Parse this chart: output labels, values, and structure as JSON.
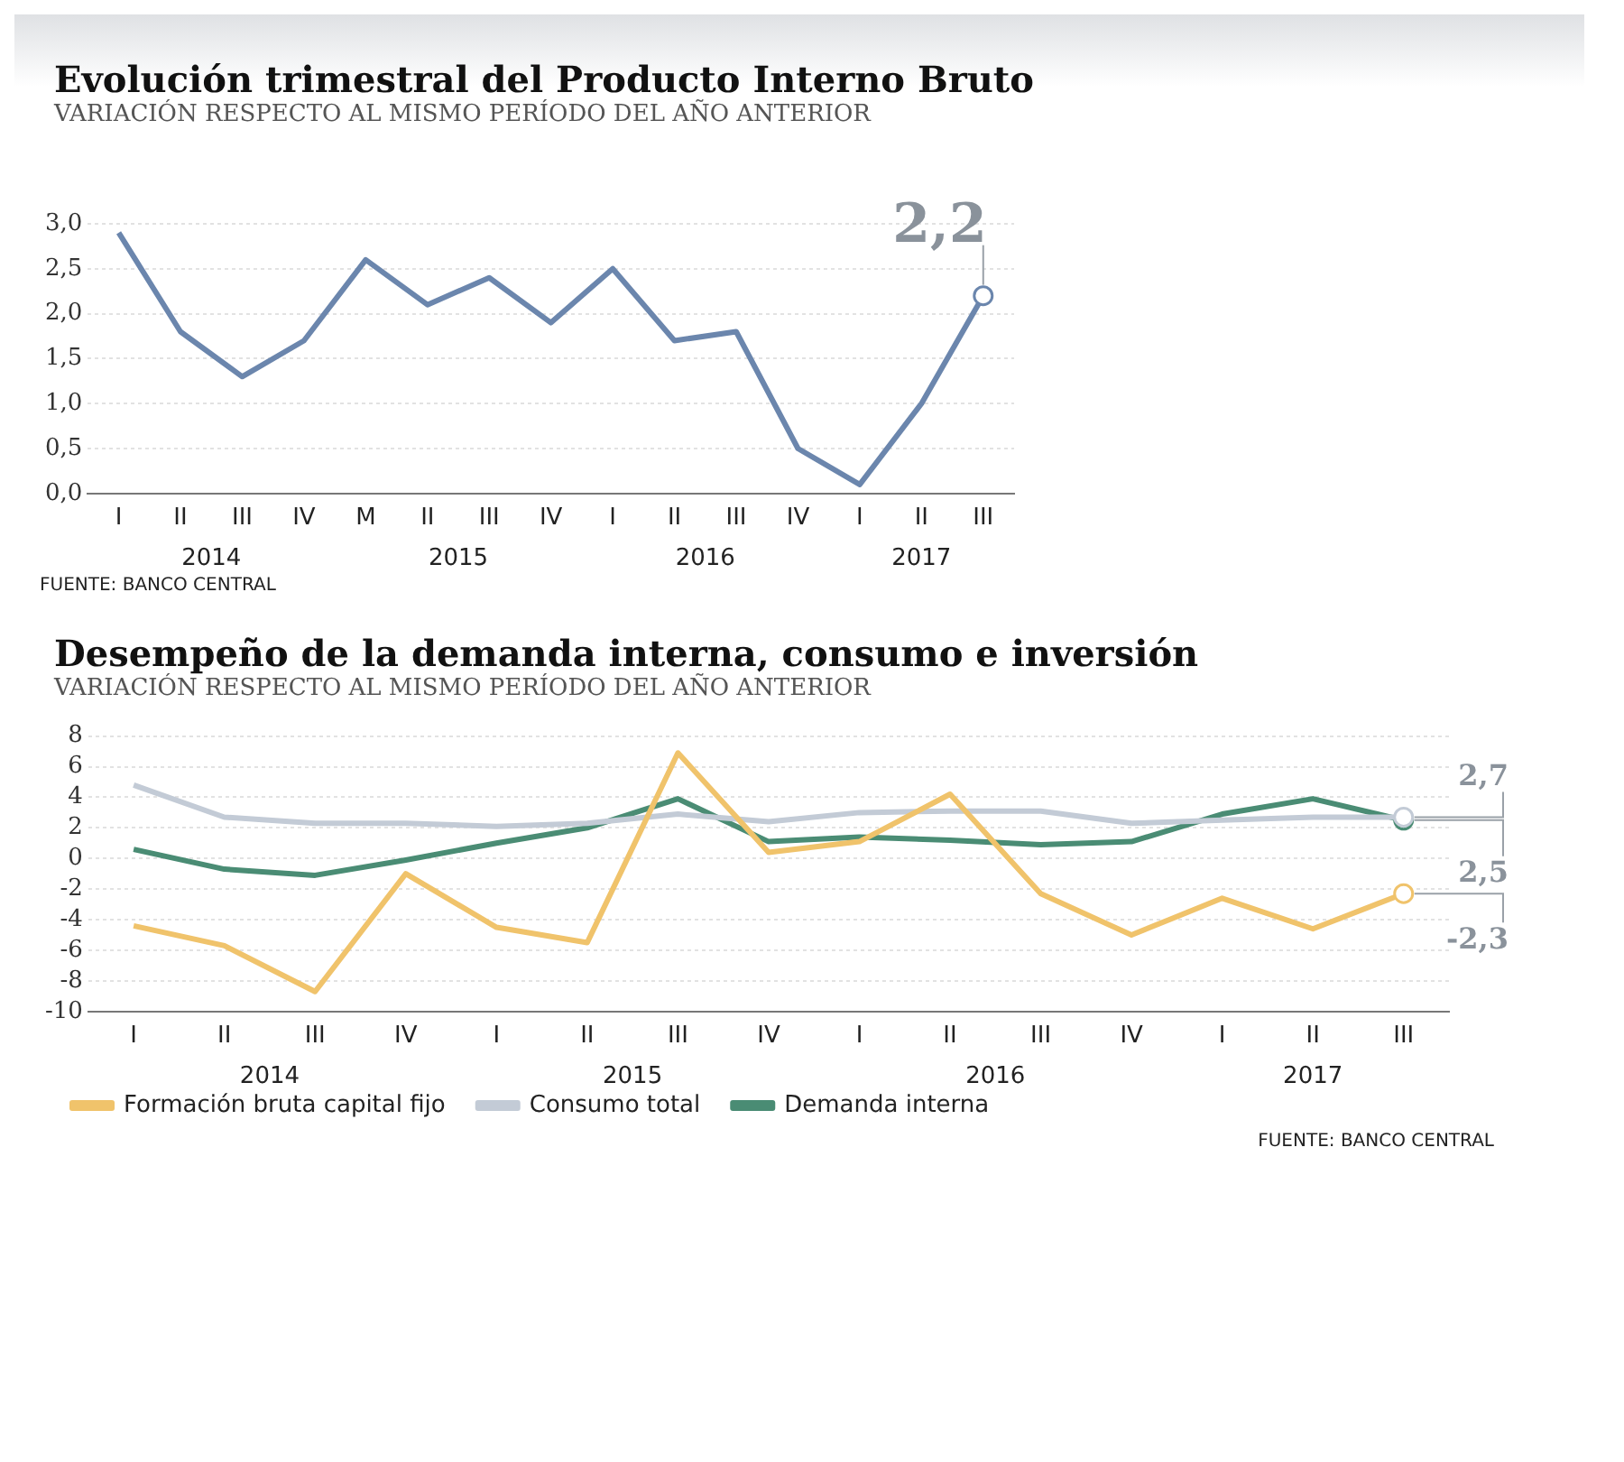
{
  "chart_data": [
    {
      "type": "line",
      "title": "Evolución trimestral del Producto Interno Bruto",
      "subtitle": "VARIACIÓN RESPECTO AL MISMO PERÍODO DEL AÑO ANTERIOR",
      "categories": [
        "I",
        "II",
        "III",
        "IV",
        "M",
        "II",
        "III",
        "IV",
        "I",
        "II",
        "III",
        "IV",
        "I",
        "II",
        "III"
      ],
      "series": [
        {
          "color": "#6b86ad",
          "values": [
            2.9,
            1.8,
            1.3,
            1.7,
            2.6,
            2.1,
            2.4,
            1.9,
            2.5,
            1.7,
            1.8,
            0.5,
            0.1,
            1.0,
            2.2
          ],
          "value_labels": [
            null,
            null,
            null,
            null,
            null,
            null,
            null,
            null,
            null,
            null,
            null,
            null,
            null,
            null,
            "2,2"
          ]
        }
      ],
      "ylim": [
        0,
        3
      ],
      "yticks": [
        {
          "value": 0,
          "label": "0,0"
        },
        {
          "value": 0.5,
          "label": "0,5"
        },
        {
          "value": 1,
          "label": "1,0"
        },
        {
          "value": 1.5,
          "label": "1,5"
        },
        {
          "value": 2,
          "label": "2,0"
        },
        {
          "value": 2.5,
          "label": "2,5"
        },
        {
          "value": 3,
          "label": "3,0"
        }
      ],
      "grid": "y",
      "legend": false,
      "annotations": [
        "2014",
        "2015",
        "2016",
        "2017",
        "FUENTE: BANCO CENTRAL"
      ]
    },
    {
      "type": "line",
      "title": "Desempeño de la demanda interna, consumo e inversión",
      "subtitle": "VARIACIÓN RESPECTO AL MISMO PERÍODO DEL AÑO ANTERIOR",
      "categories": [
        "I",
        "II",
        "III",
        "IV",
        "I",
        "II",
        "III",
        "IV",
        "I",
        "II",
        "III",
        "IV",
        "I",
        "II",
        "III"
      ],
      "series": [
        {
          "name": "Formación bruta capital fijo",
          "color": "#f0c36b",
          "values": [
            -4.4,
            -5.7,
            -8.7,
            -1.0,
            -4.5,
            -5.5,
            6.9,
            0.4,
            1.1,
            4.2,
            -2.3,
            -5.0,
            -2.6,
            -4.6,
            -2.3
          ],
          "value_labels": [
            null,
            null,
            null,
            null,
            null,
            null,
            null,
            null,
            null,
            null,
            null,
            null,
            null,
            null,
            "-2,3"
          ]
        },
        {
          "name": "Consumo total",
          "color": "#c3cbd6",
          "values": [
            4.8,
            2.7,
            2.3,
            2.3,
            2.1,
            2.3,
            2.9,
            2.4,
            3.0,
            3.1,
            3.1,
            2.3,
            2.5,
            2.7,
            2.7
          ],
          "value_labels": [
            null,
            null,
            null,
            null,
            null,
            null,
            null,
            null,
            null,
            null,
            null,
            null,
            null,
            null,
            "2,7"
          ]
        },
        {
          "name": "Demanda interna",
          "color": "#4a8c74",
          "values": [
            0.6,
            -0.7,
            -1.1,
            -0.1,
            1.0,
            2.0,
            3.9,
            1.1,
            1.4,
            1.2,
            0.9,
            1.1,
            2.9,
            3.9,
            2.5
          ],
          "value_labels": [
            null,
            null,
            null,
            null,
            null,
            null,
            null,
            null,
            null,
            null,
            null,
            null,
            null,
            null,
            "2,5"
          ]
        }
      ],
      "ylim": [
        -10,
        8
      ],
      "yticks": [
        -10,
        -8,
        -6,
        -4,
        -2,
        0,
        2,
        4,
        6,
        8
      ],
      "grid": "y",
      "legend": "bottom",
      "annotations": [
        "2014",
        "2015",
        "2016",
        "2017",
        "FUENTE: BANCO CENTRAL"
      ]
    }
  ]
}
